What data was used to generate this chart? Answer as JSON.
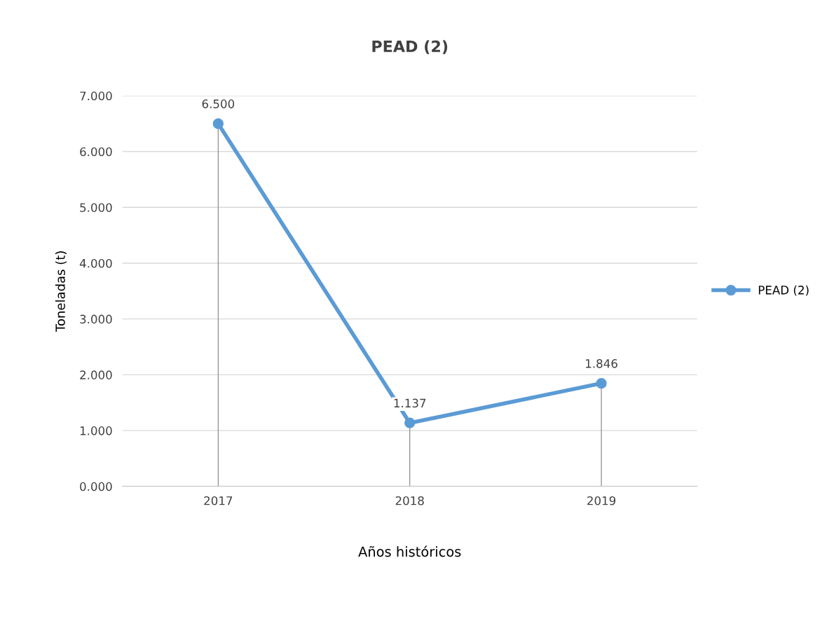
{
  "chart_data": {
    "type": "line",
    "title": "PEAD (2)",
    "xlabel": "Años históricos",
    "ylabel": "Toneladas (t)",
    "categories": [
      "2017",
      "2018",
      "2019"
    ],
    "series": [
      {
        "name": "PEAD (2)",
        "color": "#5b9bd5",
        "values": [
          6.5,
          1.137,
          1.846
        ],
        "value_labels": [
          "6.500",
          "1.137",
          "1.846"
        ],
        "errors": [
          [
            0,
            6.5
          ],
          [
            0,
            1.137
          ],
          [
            0,
            1.846
          ]
        ]
      }
    ],
    "ylim": [
      0,
      7
    ],
    "yticks": [
      {
        "value": 0,
        "label": "0.000"
      },
      {
        "value": 1,
        "label": "1.000"
      },
      {
        "value": 2,
        "label": "2.000"
      },
      {
        "value": 3,
        "label": "3.000"
      },
      {
        "value": 4,
        "label": "4.000"
      },
      {
        "value": 5,
        "label": "5.000"
      },
      {
        "value": 6,
        "label": "6.000"
      },
      {
        "value": 7,
        "label": "7.000"
      }
    ],
    "grid": "y",
    "legend": "right",
    "marker": "circle",
    "line_style": "solid"
  }
}
